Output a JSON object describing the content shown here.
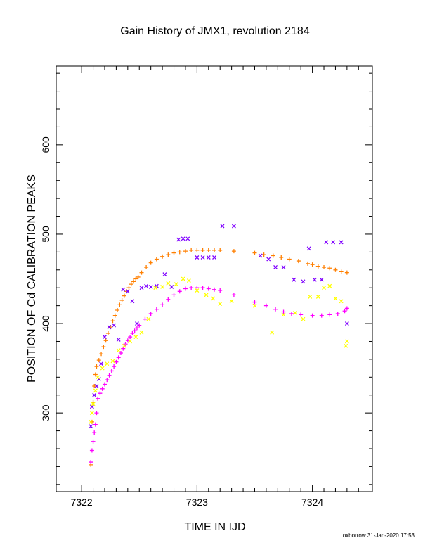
{
  "footer": {
    "stamp": "oxborrow 31-Jan-2020 17:53"
  },
  "chart_data": {
    "type": "scatter",
    "title": "Gain History of JMX1, revolution 2184",
    "xlabel": "TIME IN IJD",
    "ylabel": "POSITION OF Cd CALIBRATION PEAKS",
    "xlim": [
      7321.78,
      7324.52
    ],
    "ylim": [
      212,
      688
    ],
    "xticks": [
      7322,
      7323,
      7324
    ],
    "yticks": [
      300,
      400,
      500,
      600
    ],
    "grid": false,
    "legend": "none",
    "series": [
      {
        "color": "#ff7f00",
        "marker": "plus",
        "x": [
          7322.08,
          7322.09,
          7322.1,
          7322.11,
          7322.12,
          7322.13,
          7322.15,
          7322.17,
          7322.19,
          7322.21,
          7322.23,
          7322.25,
          7322.27,
          7322.29,
          7322.31,
          7322.33,
          7322.35,
          7322.37,
          7322.39,
          7322.41,
          7322.43,
          7322.45,
          7322.47,
          7322.49,
          7322.52,
          7322.56,
          7322.6,
          7322.65,
          7322.7,
          7322.75,
          7322.8,
          7322.85,
          7322.9,
          7322.95,
          7323.0,
          7323.05,
          7323.1,
          7323.15,
          7323.2,
          7323.32,
          7323.5,
          7323.58,
          7323.66,
          7323.73,
          7323.8,
          7323.88,
          7323.96,
          7324.0,
          7324.05,
          7324.1,
          7324.15,
          7324.2,
          7324.25,
          7324.3
        ],
        "values": [
          242,
          290,
          312,
          330,
          343,
          352,
          359,
          366,
          374,
          381,
          389,
          396,
          403,
          409,
          415,
          421,
          426,
          431,
          436,
          440,
          444,
          447,
          450,
          452,
          457,
          463,
          468,
          472,
          475,
          477,
          479,
          480,
          481,
          482,
          482,
          482,
          482,
          482,
          482,
          481,
          479,
          477,
          476,
          474,
          472,
          470,
          467,
          466,
          464,
          463,
          462,
          460,
          458,
          457
        ]
      },
      {
        "color": "#ff00ff",
        "marker": "plus",
        "x": [
          7322.08,
          7322.09,
          7322.1,
          7322.11,
          7322.12,
          7322.13,
          7322.14,
          7322.16,
          7322.18,
          7322.2,
          7322.22,
          7322.24,
          7322.26,
          7322.28,
          7322.3,
          7322.32,
          7322.34,
          7322.36,
          7322.38,
          7322.4,
          7322.42,
          7322.44,
          7322.46,
          7322.48,
          7322.5,
          7322.55,
          7322.6,
          7322.65,
          7322.7,
          7322.75,
          7322.8,
          7322.85,
          7322.9,
          7322.95,
          7323.0,
          7323.05,
          7323.1,
          7323.15,
          7323.2,
          7323.32,
          7323.5,
          7323.6,
          7323.68,
          7323.75,
          7323.82,
          7323.9,
          7324.0,
          7324.08,
          7324.15,
          7324.22,
          7324.28,
          7324.3
        ],
        "values": [
          245,
          258,
          268,
          278,
          287,
          300,
          316,
          322,
          327,
          332,
          337,
          342,
          347,
          352,
          357,
          362,
          367,
          372,
          377,
          381,
          385,
          389,
          392,
          395,
          398,
          405,
          411,
          416,
          421,
          427,
          432,
          436,
          439,
          440,
          440,
          440,
          439,
          438,
          437,
          432,
          424,
          420,
          416,
          413,
          411,
          410,
          409,
          409,
          410,
          411,
          414,
          417
        ]
      },
      {
        "color": "#7f00ff",
        "marker": "cross",
        "x": [
          7322.08,
          7322.09,
          7322.11,
          7322.13,
          7322.15,
          7322.17,
          7322.2,
          7322.24,
          7322.28,
          7322.32,
          7322.36,
          7322.4,
          7322.44,
          7322.48,
          7322.52,
          7322.56,
          7322.6,
          7322.65,
          7322.72,
          7322.78,
          7322.84,
          7322.88,
          7322.92,
          7323.0,
          7323.05,
          7323.1,
          7323.15,
          7323.22,
          7323.32,
          7323.55,
          7323.62,
          7323.68,
          7323.75,
          7323.84,
          7323.92,
          7323.97,
          7324.02,
          7324.08,
          7324.12,
          7324.18,
          7324.25,
          7324.3
        ],
        "values": [
          285,
          307,
          320,
          330,
          338,
          355,
          385,
          396,
          398,
          382,
          438,
          436,
          425,
          400,
          440,
          442,
          441,
          442,
          455,
          441,
          494,
          495,
          495,
          474,
          474,
          474,
          474,
          509,
          509,
          476,
          472,
          463,
          463,
          449,
          447,
          484,
          449,
          449,
          491,
          491,
          491,
          400
        ]
      },
      {
        "color": "#ffff00",
        "marker": "cross",
        "x": [
          7322.08,
          7322.09,
          7322.1,
          7322.12,
          7322.14,
          7322.18,
          7322.22,
          7322.27,
          7322.32,
          7322.37,
          7322.42,
          7322.47,
          7322.52,
          7322.58,
          7322.64,
          7322.7,
          7322.75,
          7322.82,
          7322.88,
          7322.93,
          7323.0,
          7323.08,
          7323.14,
          7323.2,
          7323.3,
          7323.5,
          7323.65,
          7323.75,
          7323.85,
          7323.92,
          7323.98,
          7324.05,
          7324.1,
          7324.15,
          7324.2,
          7324.25,
          7324.29,
          7324.3
        ],
        "values": [
          290,
          300,
          310,
          325,
          340,
          350,
          355,
          358,
          370,
          375,
          380,
          385,
          390,
          405,
          440,
          441,
          445,
          444,
          450,
          448,
          437,
          432,
          428,
          422,
          425,
          420,
          390,
          410,
          412,
          405,
          430,
          430,
          440,
          442,
          428,
          425,
          375,
          380
        ]
      }
    ]
  }
}
